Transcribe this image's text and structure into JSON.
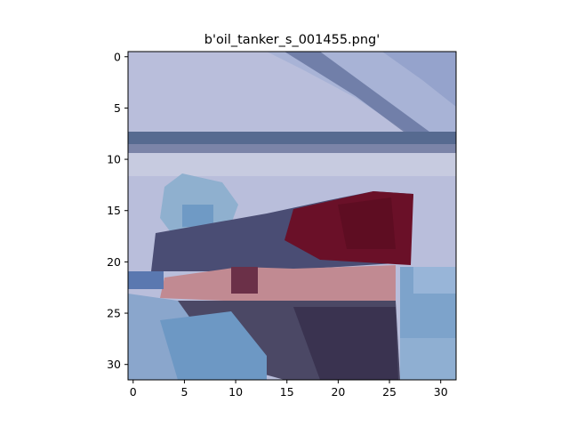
{
  "figure": {
    "title": "b'oil_tanker_s_001455.png'"
  },
  "axes": {
    "x_ticks": [
      {
        "value": 0,
        "label": "0"
      },
      {
        "value": 5,
        "label": "5"
      },
      {
        "value": 10,
        "label": "10"
      },
      {
        "value": 15,
        "label": "15"
      },
      {
        "value": 20,
        "label": "20"
      },
      {
        "value": 25,
        "label": "25"
      },
      {
        "value": 30,
        "label": "30"
      }
    ],
    "y_ticks": [
      {
        "value": 0,
        "label": "0"
      },
      {
        "value": 5,
        "label": "5"
      },
      {
        "value": 10,
        "label": "10"
      },
      {
        "value": 15,
        "label": "15"
      },
      {
        "value": 20,
        "label": "20"
      },
      {
        "value": 25,
        "label": "25"
      },
      {
        "value": 30,
        "label": "30"
      }
    ],
    "x_range": [
      -0.5,
      31.5
    ],
    "y_range": [
      -0.5,
      31.5
    ],
    "image_size": [
      32,
      32
    ]
  },
  "image": {
    "description_colors": {
      "sky": "#b9bedb",
      "stripe": "#4d5e86",
      "hull_red": "#6a1028",
      "hull_dark": "#3b3552",
      "water": "#6d98c4"
    }
  }
}
